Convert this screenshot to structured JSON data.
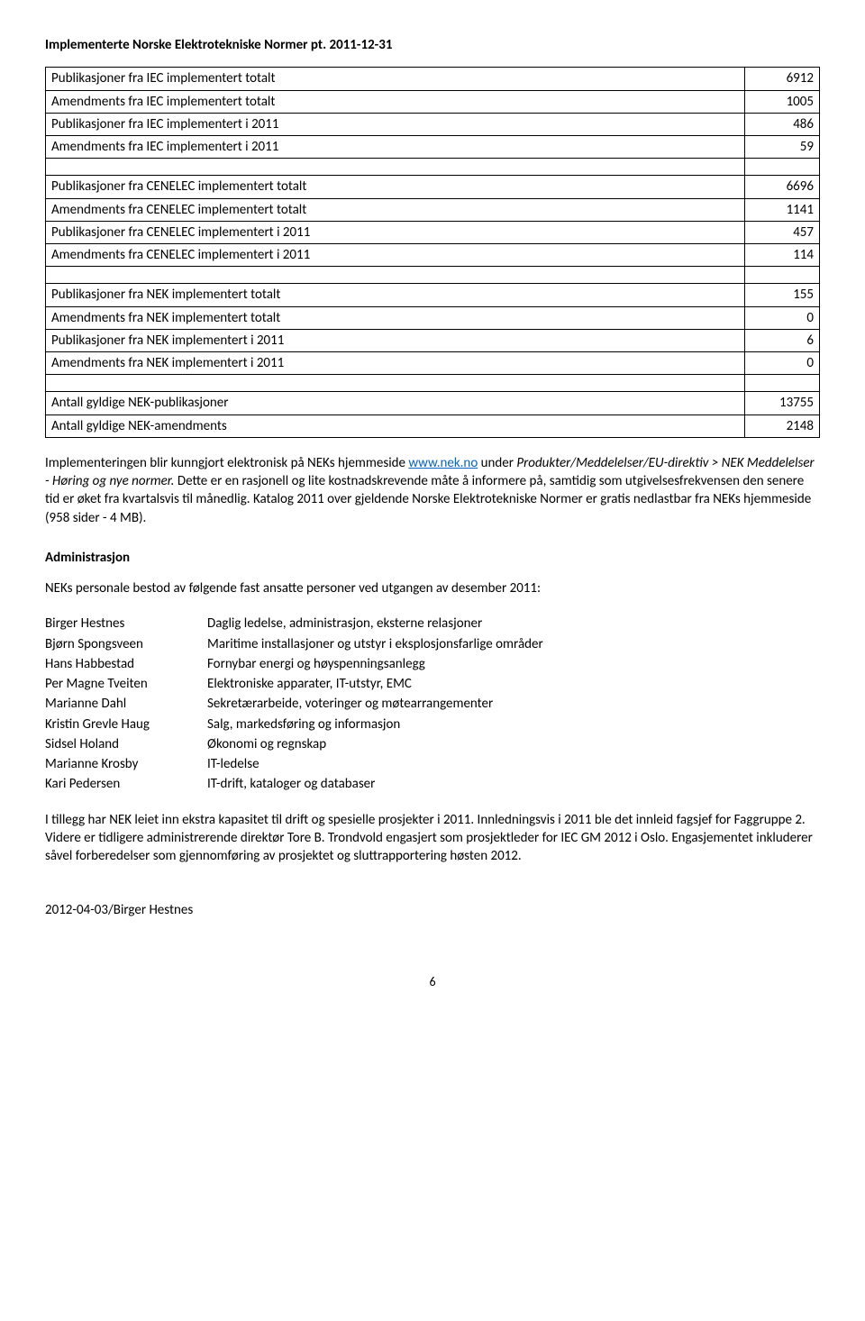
{
  "title": "Implementerte Norske Elektrotekniske Normer pt. 2011-12-31",
  "stats_groups": [
    [
      {
        "label": "Publikasjoner fra IEC implementert totalt",
        "value": "6912"
      },
      {
        "label": "Amendments fra IEC implementert totalt",
        "value": "1005"
      },
      {
        "label": "Publikasjoner fra IEC implementert i 2011",
        "value": "486"
      },
      {
        "label": "Amendments fra IEC implementert i 2011",
        "value": "59"
      }
    ],
    [
      {
        "label": "Publikasjoner fra CENELEC implementert totalt",
        "value": "6696"
      },
      {
        "label": "Amendments fra CENELEC implementert totalt",
        "value": "1141"
      },
      {
        "label": "Publikasjoner fra CENELEC implementert i 2011",
        "value": "457"
      },
      {
        "label": "Amendments fra CENELEC implementert i 2011",
        "value": "114"
      }
    ],
    [
      {
        "label": "Publikasjoner fra NEK implementert totalt",
        "value": "155"
      },
      {
        "label": "Amendments fra NEK implementert totalt",
        "value": "0"
      },
      {
        "label": "Publikasjoner fra NEK implementert i 2011",
        "value": "6"
      },
      {
        "label": "Amendments fra NEK implementert i 2011",
        "value": "0"
      }
    ],
    [
      {
        "label": "Antall gyldige NEK-publikasjoner",
        "value": "13755"
      },
      {
        "label": "Antall gyldige NEK-amendments",
        "value": "2148"
      }
    ]
  ],
  "impl_para_pre": "Implementeringen blir kunngjort elektronisk på NEKs hjemmeside ",
  "impl_link_text": "www.nek.no",
  "impl_para_mid": " under ",
  "impl_italic": "Produkter/Meddelelser/EU-direktiv > NEK Meddelelser - Høring og nye normer.",
  "impl_para_post": " Dette er en rasjonell og lite kostnadskrevende måte å informere på, samtidig som utgivelsesfrekvensen den senere tid er øket fra kvartalsvis til månedlig. Katalog 2011 over gjeldende Norske Elektrotekniske Normer er gratis nedlastbar fra NEKs hjemmeside (958 sider - 4 MB).",
  "admin_heading": "Administrasjon",
  "admin_intro": "NEKs personale bestod av følgende fast ansatte personer ved utgangen av desember 2011:",
  "people": [
    {
      "name": "Birger Hestnes",
      "role": "Daglig ledelse, administrasjon, eksterne relasjoner"
    },
    {
      "name": "Bjørn Spongsveen",
      "role": "Maritime installasjoner og utstyr i eksplosjonsfarlige områder"
    },
    {
      "name": "Hans Habbestad",
      "role": "Fornybar energi og høyspenningsanlegg"
    },
    {
      "name": "Per Magne Tveiten",
      "role": "Elektroniske apparater, IT-utstyr, EMC"
    },
    {
      "name": "Marianne Dahl",
      "role": "Sekretærarbeide, voteringer og møtearrangementer"
    },
    {
      "name": "Kristin Grevle Haug",
      "role": "Salg, markedsføring og informasjon"
    },
    {
      "name": "Sidsel Holand",
      "role": "Økonomi og regnskap"
    },
    {
      "name": "Marianne Krosby",
      "role": "IT-ledelse"
    },
    {
      "name": "Kari Pedersen",
      "role": "IT-drift, kataloger og databaser"
    }
  ],
  "closing_para": "I tillegg har NEK leiet inn ekstra kapasitet til drift og spesielle prosjekter i 2011. Innledningsvis i 2011 ble det innleid fagsjef for Faggruppe 2. Videre er tidligere administrerende direktør Tore B. Trondvold engasjert som prosjektleder for IEC GM 2012 i Oslo. Engasjementet inkluderer såvel forberedelser som gjennomføring av prosjektet og sluttrapportering høsten 2012.",
  "signature": "2012-04-03/Birger Hestnes",
  "page_number": "6"
}
